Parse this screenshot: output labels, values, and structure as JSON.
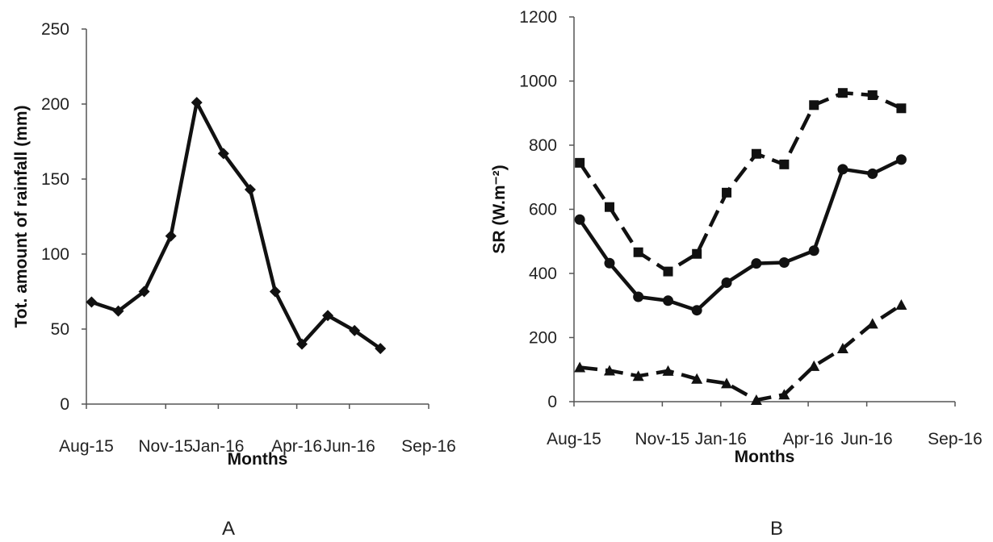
{
  "chart_data": [
    {
      "panel_label": "A",
      "type": "line",
      "xlabel": "Months",
      "ylabel": "Tot. amount of rainfall (mm)",
      "ylim": [
        0,
        250
      ],
      "yticks": [
        0,
        50,
        100,
        150,
        200,
        250
      ],
      "xlim": [
        "2015-08-01",
        "2016-09-01"
      ],
      "xticks": [
        "Aug-15",
        "Nov-15",
        "Jan-16",
        "Apr-16",
        "Jun-16",
        "Sep-16"
      ],
      "xtick_dates": [
        "2015-08-01",
        "2015-11-01",
        "2016-01-01",
        "2016-04-01",
        "2016-06-01",
        "2016-09-01"
      ],
      "series": [
        {
          "line": "solid",
          "marker": "diamond",
          "x": [
            "2015-08-07",
            "2015-09-07",
            "2015-10-07",
            "2015-11-07",
            "2015-12-07",
            "2016-01-07",
            "2016-02-07",
            "2016-03-07",
            "2016-04-07",
            "2016-05-07",
            "2016-06-07",
            "2016-07-07"
          ],
          "values": [
            68,
            62,
            75,
            112,
            201,
            167,
            143,
            75,
            40,
            59,
            49,
            37
          ]
        }
      ]
    },
    {
      "panel_label": "B",
      "type": "line",
      "xlabel": "Months",
      "ylabel": "SR (W.m⁻²)",
      "ylim": [
        0,
        1200
      ],
      "yticks": [
        0,
        200,
        400,
        600,
        800,
        1000,
        1200
      ],
      "xlim": [
        "2015-08-01",
        "2016-09-01"
      ],
      "xticks": [
        "Aug-15",
        "Nov-15",
        "Jan-16",
        "Apr-16",
        "Jun-16",
        "Sep-16"
      ],
      "xtick_dates": [
        "2015-08-01",
        "2015-11-01",
        "2016-01-01",
        "2016-04-01",
        "2016-06-01",
        "2016-09-01"
      ],
      "series": [
        {
          "line": "dashed",
          "marker": "square",
          "x": [
            "2015-08-07",
            "2015-09-07",
            "2015-10-07",
            "2015-11-07",
            "2015-12-07",
            "2016-01-07",
            "2016-02-07",
            "2016-03-07",
            "2016-04-07",
            "2016-05-07",
            "2016-06-07",
            "2016-07-07"
          ],
          "values": [
            745,
            607,
            466,
            406,
            461,
            652,
            773,
            740,
            925,
            963,
            956,
            915
          ]
        },
        {
          "line": "solid",
          "marker": "circle",
          "x": [
            "2015-08-07",
            "2015-09-07",
            "2015-10-07",
            "2015-11-07",
            "2015-12-07",
            "2016-01-07",
            "2016-02-07",
            "2016-03-07",
            "2016-04-07",
            "2016-05-07",
            "2016-06-07",
            "2016-07-07"
          ],
          "values": [
            568,
            432,
            327,
            315,
            285,
            371,
            431,
            434,
            471,
            725,
            711,
            755
          ]
        },
        {
          "line": "dashed",
          "marker": "triangle",
          "x": [
            "2015-08-07",
            "2015-09-07",
            "2015-10-07",
            "2015-11-07",
            "2015-12-07",
            "2016-01-07",
            "2016-02-07",
            "2016-03-07",
            "2016-04-07",
            "2016-05-07",
            "2016-06-07",
            "2016-07-07"
          ],
          "values": [
            107,
            97,
            80,
            96,
            71,
            57,
            5,
            22,
            111,
            166,
            243,
            302
          ]
        }
      ]
    }
  ]
}
